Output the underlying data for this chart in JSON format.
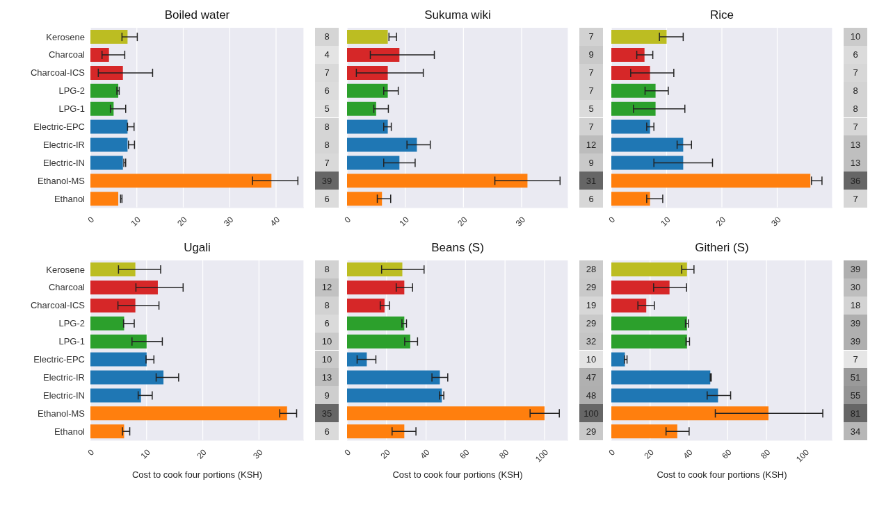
{
  "chart_data": [
    {
      "type": "bar",
      "orientation": "horizontal",
      "title": "Boiled water",
      "categories": [
        "Kerosene",
        "Charcoal",
        "Charcoal-ICS",
        "LPG-2",
        "LPG-1",
        "Electric-EPC",
        "Electric-IR",
        "Electric-IN",
        "Ethanol-MS",
        "Ethanol"
      ],
      "colors": [
        "#bcbd22",
        "#d62728",
        "#d62728",
        "#2ca02c",
        "#2ca02c",
        "#1f77b4",
        "#1f77b4",
        "#1f77b4",
        "#ff7f0e",
        "#ff7f0e"
      ],
      "values": [
        8,
        4,
        7,
        6,
        5,
        8,
        8,
        7,
        39,
        6
      ],
      "errors": [
        [
          6.8,
          10.1
        ],
        [
          2.5,
          7.4
        ],
        [
          1.7,
          13.4
        ],
        [
          5.7,
          6.2
        ],
        [
          4.3,
          7.6
        ],
        [
          8.0,
          9.4
        ],
        [
          8.2,
          9.5
        ],
        [
          7.2,
          7.6
        ],
        [
          34.9,
          44.7
        ],
        [
          6.5,
          6.8
        ]
      ],
      "data_labels": true,
      "xlim": [
        0,
        46
      ],
      "xticks": [
        0,
        10,
        20,
        30,
        40
      ],
      "grid": "x"
    },
    {
      "type": "bar",
      "orientation": "horizontal",
      "title": "Sukuma wiki",
      "categories": [
        null,
        null,
        null,
        null,
        null,
        null,
        null,
        null,
        null,
        null
      ],
      "colors": [
        "#bcbd22",
        "#d62728",
        "#d62728",
        "#2ca02c",
        "#2ca02c",
        "#1f77b4",
        "#1f77b4",
        "#1f77b4",
        "#ff7f0e",
        "#ff7f0e"
      ],
      "values": [
        7,
        9,
        7,
        7,
        5,
        7,
        12,
        9,
        31,
        6
      ],
      "errors": [
        [
          7.2,
          8.5
        ],
        [
          4.0,
          15.0
        ],
        [
          1.6,
          13.1
        ],
        [
          6.3,
          8.8
        ],
        [
          4.6,
          7.1
        ],
        [
          6.3,
          7.6
        ],
        [
          10.3,
          14.3
        ],
        [
          6.3,
          11.7
        ],
        [
          25.4,
          36.6
        ],
        [
          5.2,
          7.5
        ]
      ],
      "data_labels": true,
      "xlim": [
        0,
        38
      ],
      "xticks": [
        0,
        10,
        20,
        30
      ],
      "grid": "x",
      "tick_labels": "x"
    },
    {
      "type": "bar",
      "orientation": "horizontal",
      "title": "Rice",
      "categories": [
        null,
        null,
        null,
        null,
        null,
        null,
        null,
        null,
        null,
        null
      ],
      "colors": [
        "#bcbd22",
        "#d62728",
        "#d62728",
        "#2ca02c",
        "#2ca02c",
        "#1f77b4",
        "#1f77b4",
        "#1f77b4",
        "#ff7f0e",
        "#ff7f0e"
      ],
      "values": [
        10,
        6,
        7,
        8,
        8,
        7,
        13,
        13,
        36,
        7
      ],
      "errors": [
        [
          8.7,
          13.0
        ],
        [
          4.6,
          7.5
        ],
        [
          3.5,
          11.3
        ],
        [
          6.1,
          10.3
        ],
        [
          4.0,
          13.3
        ],
        [
          6.4,
          7.7
        ],
        [
          11.9,
          14.5
        ],
        [
          7.7,
          18.3
        ],
        [
          36.2,
          38.1
        ],
        [
          6.4,
          9.3
        ]
      ],
      "data_labels": true,
      "xlim": [
        0,
        40
      ],
      "xticks": [
        0,
        10,
        20,
        30
      ],
      "grid": "x",
      "tick_labels": "x"
    },
    {
      "type": "bar",
      "orientation": "horizontal",
      "title": "Ugali",
      "xlabel": "Cost to cook four portions (KSH)",
      "categories": [
        "Kerosene",
        "Charcoal",
        "Charcoal-ICS",
        "LPG-2",
        "LPG-1",
        "Electric-EPC",
        "Electric-IR",
        "Electric-IN",
        "Ethanol-MS",
        "Ethanol"
      ],
      "colors": [
        "#bcbd22",
        "#d62728",
        "#d62728",
        "#2ca02c",
        "#2ca02c",
        "#1f77b4",
        "#1f77b4",
        "#1f77b4",
        "#ff7f0e",
        "#ff7f0e"
      ],
      "values": [
        8,
        12,
        8,
        6,
        10,
        10,
        13,
        9,
        35,
        6
      ],
      "errors": [
        [
          5.0,
          12.5
        ],
        [
          8.1,
          16.5
        ],
        [
          4.9,
          12.2
        ],
        [
          5.9,
          7.8
        ],
        [
          7.4,
          12.8
        ],
        [
          9.9,
          11.3
        ],
        [
          11.7,
          15.7
        ],
        [
          8.5,
          11.0
        ],
        [
          33.7,
          36.7
        ],
        [
          5.7,
          7.0
        ]
      ],
      "data_labels": true,
      "xlim": [
        0,
        38
      ],
      "xticks": [
        0,
        10,
        20,
        30
      ],
      "grid": "x"
    },
    {
      "type": "bar",
      "orientation": "horizontal",
      "title": "Beans (S)",
      "xlabel": "Cost to cook four portions (KSH)",
      "categories": [
        null,
        null,
        null,
        null,
        null,
        null,
        null,
        null,
        null,
        null
      ],
      "colors": [
        "#bcbd22",
        "#d62728",
        "#d62728",
        "#2ca02c",
        "#2ca02c",
        "#1f77b4",
        "#1f77b4",
        "#1f77b4",
        "#ff7f0e",
        "#ff7f0e"
      ],
      "values": [
        28,
        29,
        19,
        29,
        32,
        10,
        47,
        48,
        100,
        29
      ],
      "errors": [
        [
          17.5,
          39.0
        ],
        [
          24.9,
          33.2
        ],
        [
          16.8,
          21.5
        ],
        [
          27.8,
          30.1
        ],
        [
          29.2,
          35.7
        ],
        [
          5.1,
          14.6
        ],
        [
          43.0,
          51.0
        ],
        [
          46.8,
          49.0
        ],
        [
          92.7,
          107.5
        ],
        [
          22.8,
          34.9
        ]
      ],
      "data_labels": true,
      "xlim": [
        0,
        112
      ],
      "xticks": [
        0,
        20,
        40,
        60,
        80,
        100
      ],
      "grid": "x",
      "tick_labels": "x"
    },
    {
      "type": "bar",
      "orientation": "horizontal",
      "title": "Githeri (S)",
      "xlabel": "Cost to cook four portions (KSH)",
      "categories": [
        null,
        null,
        null,
        null,
        null,
        null,
        null,
        null,
        null,
        null
      ],
      "colors": [
        "#bcbd22",
        "#d62728",
        "#d62728",
        "#2ca02c",
        "#2ca02c",
        "#1f77b4",
        "#1f77b4",
        "#1f77b4",
        "#ff7f0e",
        "#ff7f0e"
      ],
      "values": [
        39,
        30,
        18,
        39,
        39,
        7,
        51,
        55,
        81,
        34
      ],
      "errors": [
        [
          36.3,
          42.6
        ],
        [
          21.8,
          38.8
        ],
        [
          13.7,
          22.2
        ],
        [
          38.2,
          39.7
        ],
        [
          38.5,
          40.3
        ],
        [
          6.7,
          8.1
        ],
        [
          51.0,
          51.5
        ],
        [
          49.4,
          61.5
        ],
        [
          53.6,
          109.0
        ],
        [
          28.2,
          40.1
        ]
      ],
      "data_labels": true,
      "xlim": [
        0,
        114
      ],
      "xticks": [
        0,
        20,
        40,
        60,
        80,
        100
      ],
      "grid": "x",
      "tick_labels": "x"
    }
  ]
}
